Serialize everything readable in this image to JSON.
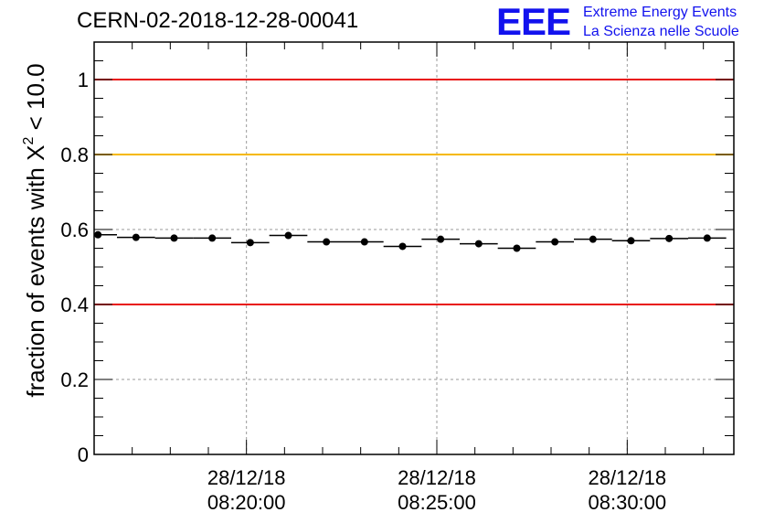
{
  "header": {
    "run_title": "CERN-02-2018-12-28-00041"
  },
  "logo": {
    "mark": "EEE",
    "line1": "Extreme Energy Events",
    "line2": "La Scienza nelle Scuole"
  },
  "chart_data": {
    "type": "scatter",
    "title": "CERN-02-2018-12-28-00041",
    "xlabel": "",
    "ylabel_prefix": "fraction of events with X",
    "ylabel_sup": "2",
    "ylabel_suffix": " < 10.0",
    "ylim": [
      0,
      1.1
    ],
    "yticks": [
      0,
      0.2,
      0.4,
      0.6,
      0.8,
      1
    ],
    "ytick_labels": [
      "0",
      "0.2",
      "0.4",
      "0.6",
      "0.8",
      "1"
    ],
    "xlim_minutes": [
      0,
      16.8
    ],
    "xticks_minutes": [
      4.0,
      9.0,
      14.0
    ],
    "xtick_labels": [
      {
        "date": "28/12/18",
        "time": "08:20:00"
      },
      {
        "date": "28/12/18",
        "time": "08:25:00"
      },
      {
        "date": "28/12/18",
        "time": "08:30:00"
      }
    ],
    "bin_width_minutes": 1.0,
    "x_centers_minutes": [
      0.1,
      1.1,
      2.1,
      3.1,
      4.1,
      5.1,
      6.1,
      7.1,
      8.1,
      9.1,
      10.1,
      11.1,
      12.1,
      13.1,
      14.1,
      15.1,
      16.1
    ],
    "values": [
      0.586,
      0.579,
      0.577,
      0.577,
      0.565,
      0.584,
      0.567,
      0.567,
      0.555,
      0.574,
      0.562,
      0.55,
      0.567,
      0.574,
      0.57,
      0.576,
      0.577
    ],
    "reference_lines": [
      {
        "y": 1.0,
        "color": "#e8120f"
      },
      {
        "y": 0.8,
        "color": "#f5b800"
      },
      {
        "y": 0.4,
        "color": "#e8120f"
      }
    ],
    "grid": true
  }
}
